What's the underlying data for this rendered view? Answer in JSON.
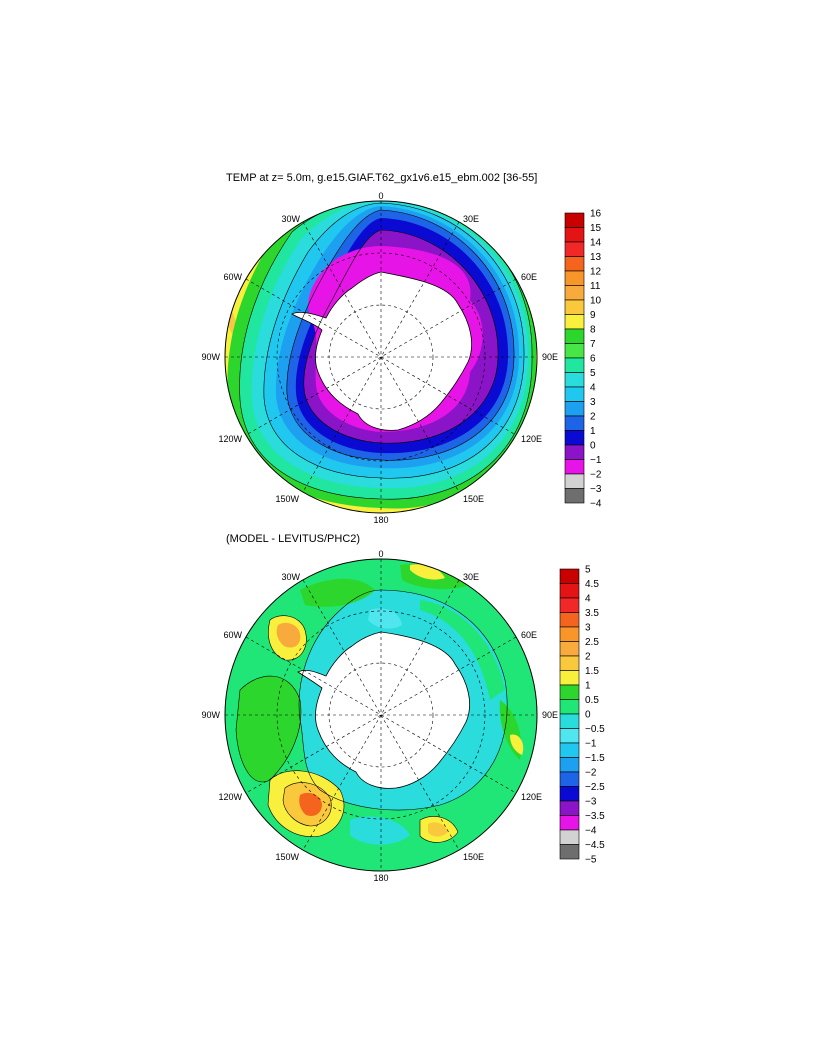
{
  "top_panel": {
    "title": "TEMP at z=   5.0m, g.e15.GIAF.T62_gx1v6.e15_ebm.002 [36-55]",
    "lon_labels": {
      "n": "0",
      "n30e": "30E",
      "n60e": "60E",
      "e": "90E",
      "s120e": "120E",
      "s150e": "150E",
      "s": "180",
      "s150w": "150W",
      "s120w": "120W",
      "w": "90W",
      "n60w": "60W",
      "n30w": "30W"
    },
    "colorbar": {
      "labels": [
        "16",
        "15",
        "14",
        "13",
        "12",
        "11",
        "10",
        "9",
        "8",
        "7",
        "6",
        "5",
        "4",
        "3",
        "2",
        "1",
        "0",
        "−1",
        "−2",
        "−3",
        "−4"
      ],
      "colors": [
        "#c80000",
        "#e41414",
        "#f02828",
        "#f5641e",
        "#f8962a",
        "#f8aa3c",
        "#fac83c",
        "#f8f03c",
        "#2cd62c",
        "#46e646",
        "#20e6a0",
        "#2adcdc",
        "#20c8f0",
        "#1ea0f0",
        "#1e64e6",
        "#0a0ad2",
        "#8c14c8",
        "#e614e6",
        "#d2d2d2",
        "#6e6e6e"
      ]
    }
  },
  "bottom_panel": {
    "title": "(MODEL - LEVITUS/PHC2)",
    "lon_labels": {
      "n": "0",
      "n30e": "30E",
      "n60e": "60E",
      "e": "90E",
      "s120e": "120E",
      "s150e": "150E",
      "s": "180",
      "s150w": "150W",
      "s120w": "120W",
      "w": "90W",
      "n60w": "60W",
      "n30w": "30W"
    },
    "colorbar": {
      "labels": [
        "5",
        "4.5",
        "4",
        "3.5",
        "3",
        "2.5",
        "2",
        "1.5",
        "1",
        "0.5",
        "0",
        "−0.5",
        "−1",
        "−1.5",
        "−2",
        "−2.5",
        "−3",
        "−3.5",
        "−4",
        "−4.5",
        "−5"
      ],
      "colors": [
        "#c80000",
        "#e41414",
        "#f02828",
        "#f5641e",
        "#f8962a",
        "#f8aa3c",
        "#fac83c",
        "#f8f03c",
        "#2cd62c",
        "#20e678",
        "#2adcdc",
        "#50e6f0",
        "#20c8f0",
        "#1ea0f0",
        "#1e64e6",
        "#0a0ad2",
        "#8c14c8",
        "#e614e6",
        "#d2d2d2",
        "#6e6e6e"
      ]
    }
  }
}
